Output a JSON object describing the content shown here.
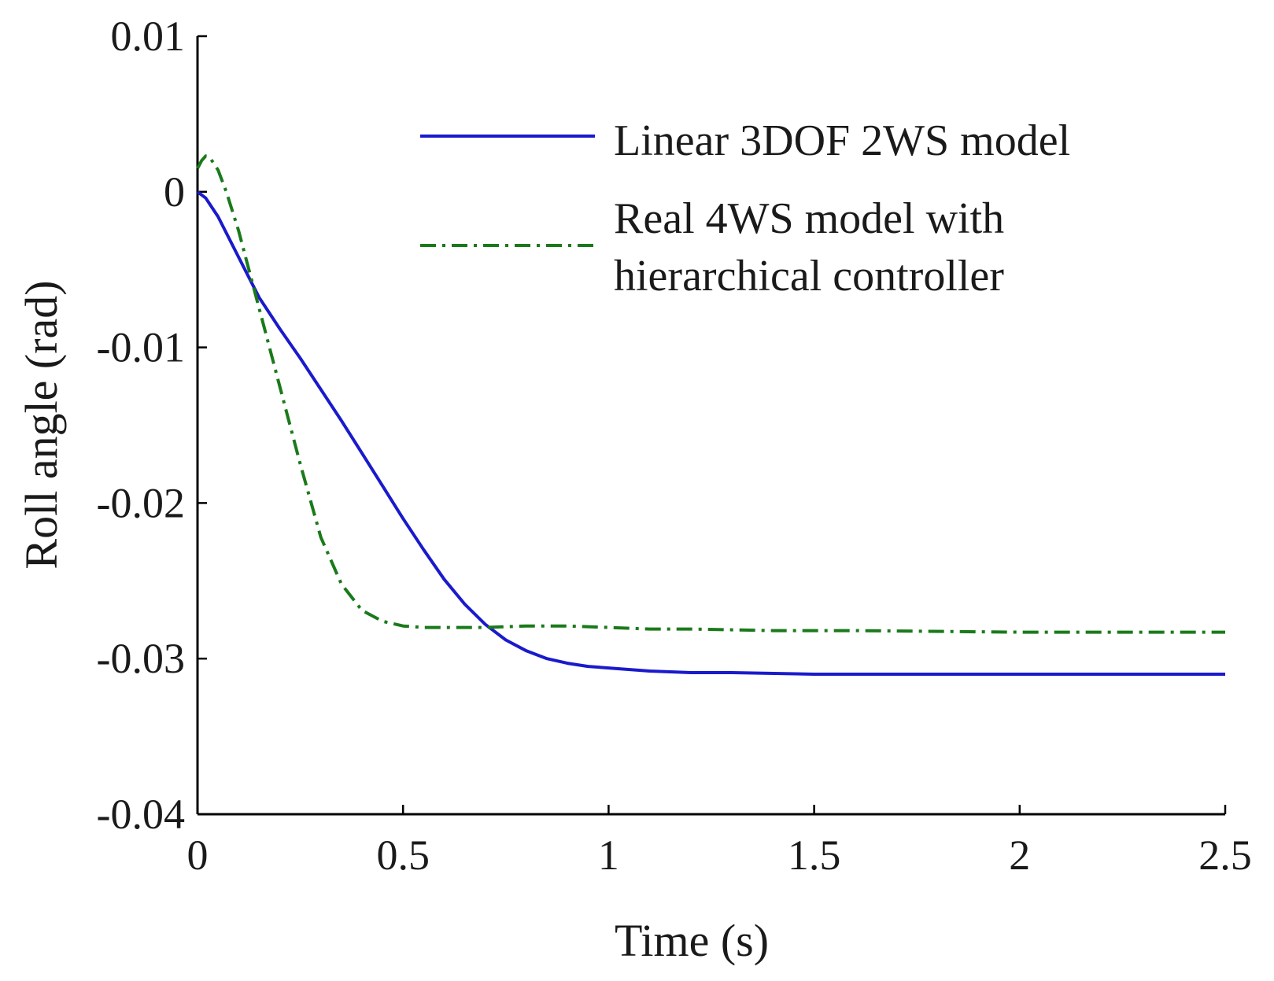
{
  "chart_data": {
    "type": "line",
    "xlabel": "Time (s)",
    "ylabel": "Roll angle (rad)",
    "xlim": [
      0,
      2.5
    ],
    "ylim": [
      -0.04,
      0.01
    ],
    "xticks": [
      0,
      0.5,
      1,
      1.5,
      2,
      2.5
    ],
    "xtick_labels": [
      "0",
      "0.5",
      "1",
      "1.5",
      "2",
      "2.5"
    ],
    "yticks": [
      0.01,
      0,
      -0.01,
      -0.02,
      -0.03,
      -0.04
    ],
    "ytick_labels": [
      "0.01",
      "0",
      "-0.01",
      "-0.02",
      "-0.03",
      "-0.04"
    ],
    "grid": false,
    "legend_position": "top-right",
    "series": [
      {
        "name": "Linear 3DOF 2WS model",
        "color": "#1a1acc",
        "style": "solid",
        "x": [
          0,
          0.02,
          0.05,
          0.1,
          0.15,
          0.2,
          0.25,
          0.3,
          0.35,
          0.4,
          0.45,
          0.5,
          0.55,
          0.6,
          0.65,
          0.7,
          0.75,
          0.8,
          0.85,
          0.9,
          0.95,
          1.0,
          1.1,
          1.2,
          1.3,
          1.5,
          1.75,
          2.0,
          2.25,
          2.5
        ],
        "y": [
          0,
          -0.0004,
          -0.0016,
          -0.0042,
          -0.0068,
          -0.0088,
          -0.0107,
          -0.0127,
          -0.0147,
          -0.0168,
          -0.0189,
          -0.021,
          -0.023,
          -0.0249,
          -0.0265,
          -0.0278,
          -0.0288,
          -0.0295,
          -0.03,
          -0.0303,
          -0.0305,
          -0.0306,
          -0.0308,
          -0.0309,
          -0.0309,
          -0.031,
          -0.031,
          -0.031,
          -0.031,
          -0.031
        ]
      },
      {
        "name": "Real 4WS model with hierarchical controller",
        "color": "#1a7a1a",
        "style": "dashdot",
        "x": [
          0,
          0.01,
          0.02,
          0.03,
          0.05,
          0.07,
          0.1,
          0.13,
          0.16,
          0.2,
          0.25,
          0.3,
          0.35,
          0.4,
          0.45,
          0.5,
          0.55,
          0.6,
          0.65,
          0.7,
          0.8,
          0.9,
          1.0,
          1.1,
          1.2,
          1.4,
          1.6,
          2.0,
          2.5
        ],
        "y": [
          0.0015,
          0.002,
          0.0023,
          0.0022,
          0.0014,
          0.0,
          -0.0025,
          -0.0055,
          -0.0085,
          -0.0125,
          -0.0175,
          -0.0222,
          -0.0252,
          -0.0269,
          -0.0276,
          -0.0279,
          -0.028,
          -0.028,
          -0.028,
          -0.028,
          -0.0279,
          -0.0279,
          -0.028,
          -0.0281,
          -0.0281,
          -0.0282,
          -0.0282,
          -0.0283,
          -0.0283
        ]
      }
    ]
  },
  "legend": {
    "entry1_line1": "Linear 3DOF 2WS model",
    "entry2_line1": "Real 4WS model with",
    "entry2_line2": "hierarchical controller"
  }
}
